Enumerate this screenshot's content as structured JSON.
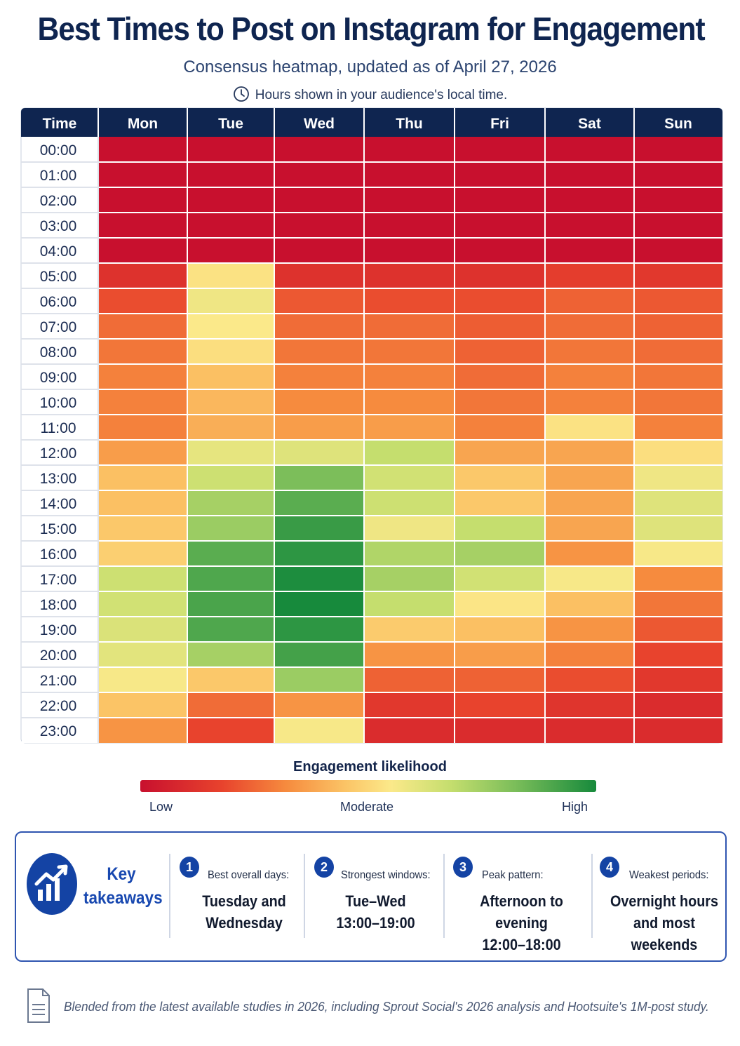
{
  "header": {
    "title": "Best Times to Post on Instagram for Engagement",
    "subtitle": "Consensus heatmap, updated as of April 27, 2026",
    "hours_note": "Hours shown in your audience's local time."
  },
  "colors": {
    "header_bg": "#0f2550",
    "low": "#c8102e",
    "moderate": "#fbe98a",
    "high": "#178a3c",
    "accent": "#1443a4"
  },
  "chart_data": {
    "type": "heatmap",
    "corner_label": "Time",
    "x_categories": [
      "Mon",
      "Tue",
      "Wed",
      "Thu",
      "Fri",
      "Sat",
      "Sun"
    ],
    "y_categories": [
      "00:00",
      "01:00",
      "02:00",
      "03:00",
      "04:00",
      "05:00",
      "06:00",
      "07:00",
      "08:00",
      "09:00",
      "10:00",
      "11:00",
      "12:00",
      "13:00",
      "14:00",
      "15:00",
      "16:00",
      "17:00",
      "18:00",
      "19:00",
      "20:00",
      "21:00",
      "22:00",
      "23:00"
    ],
    "value_range": [
      0,
      10
    ],
    "values": [
      [
        0,
        0,
        0,
        0,
        0,
        0,
        0
      ],
      [
        0,
        0,
        0,
        0,
        0,
        0,
        0
      ],
      [
        0,
        0,
        0,
        0,
        0,
        0,
        0
      ],
      [
        0,
        0,
        0,
        0,
        0,
        0,
        0
      ],
      [
        0,
        0,
        0,
        0,
        0,
        0,
        0
      ],
      [
        1.2,
        5.3,
        1.2,
        1.2,
        1.2,
        1.6,
        1.4
      ],
      [
        2,
        5.8,
        2.2,
        2,
        2,
        2.4,
        2.2
      ],
      [
        2.6,
        5.5,
        2.6,
        2.6,
        2.3,
        2.6,
        2.4
      ],
      [
        2.8,
        5.2,
        2.8,
        2.8,
        2.4,
        2.8,
        2.6
      ],
      [
        3,
        4.4,
        3,
        3,
        2.6,
        3,
        2.8
      ],
      [
        3,
        4.2,
        3.2,
        3.2,
        2.8,
        3,
        2.8
      ],
      [
        3,
        4,
        3.6,
        3.6,
        3,
        5.3,
        3
      ],
      [
        3.6,
        6,
        6.2,
        6.8,
        3.8,
        3.8,
        5.2
      ],
      [
        4.4,
        6.6,
        8.2,
        6.5,
        4.6,
        3.8,
        5.8
      ],
      [
        4.4,
        7.4,
        8.8,
        6.6,
        4.6,
        3.8,
        6.2
      ],
      [
        4.6,
        7.6,
        9.4,
        5.8,
        6.8,
        3.8,
        6.2
      ],
      [
        4.8,
        8.8,
        9.6,
        7.2,
        7.4,
        3.4,
        5.6
      ],
      [
        6.6,
        9,
        9.9,
        7.4,
        6.5,
        5.6,
        3.2
      ],
      [
        6.5,
        9.1,
        10,
        6.8,
        5.4,
        4.4,
        2.8
      ],
      [
        6.3,
        9,
        9.6,
        4.7,
        4.4,
        3.4,
        2.2
      ],
      [
        6.1,
        7.4,
        9.2,
        3.4,
        3.6,
        3,
        1.8
      ],
      [
        5.6,
        4.6,
        7.6,
        2.4,
        2.4,
        2,
        1.4
      ],
      [
        4.5,
        2.6,
        3.4,
        1.4,
        1.8,
        1.3,
        1
      ],
      [
        3.4,
        1.8,
        5.6,
        1,
        1,
        1,
        1
      ]
    ],
    "legend": {
      "title": "Engagement likelihood",
      "low": "Low",
      "moderate": "Moderate",
      "high": "High"
    }
  },
  "takeaways": {
    "label_line1": "Key",
    "label_line2": "takeaways",
    "badge_icon": "trending-chart-icon",
    "items": [
      {
        "number": "1",
        "caption": "Best overall days:",
        "line1": "Tuesday and",
        "line2": "Wednesday"
      },
      {
        "number": "2",
        "caption": "Strongest windows:",
        "line1": "Tue–Wed",
        "line2": "13:00–19:00"
      },
      {
        "number": "3",
        "caption": "Peak pattern:",
        "line1": "Afternoon to evening",
        "line2": "12:00–18:00"
      },
      {
        "number": "4",
        "caption": "Weakest periods:",
        "line1": "Overnight hours",
        "line2": "and most weekends"
      }
    ]
  },
  "footnote": {
    "icon": "document-icon",
    "text": "Blended from the latest available studies in 2026, including Sprout Social's 2026 analysis and Hootsuite's 1M-post study."
  }
}
